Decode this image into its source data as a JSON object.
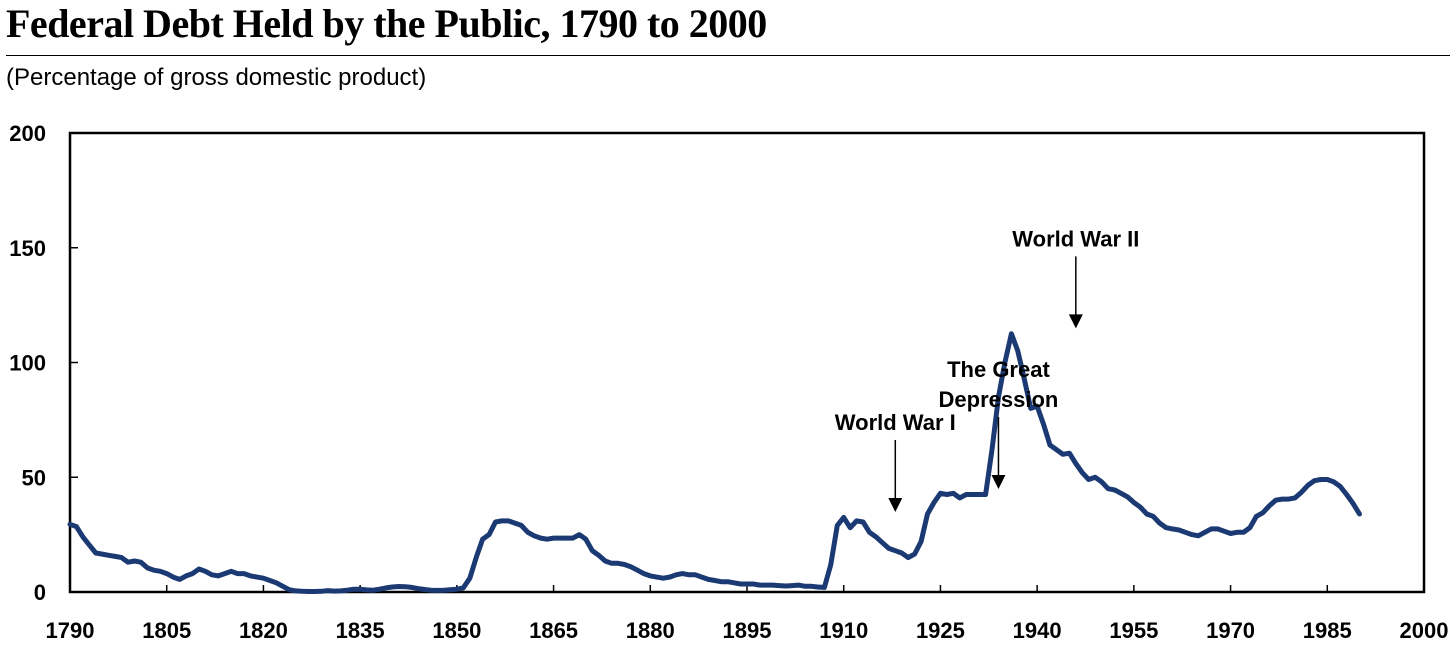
{
  "chart_data": {
    "type": "line",
    "title": "Federal Debt Held by the Public, 1790 to 2000",
    "subtitle": "(Percentage of gross domestic product)",
    "xlabel": "",
    "ylabel": "",
    "xlim": [
      1790,
      2000
    ],
    "ylim": [
      0,
      200
    ],
    "x_ticks": [
      1790,
      1805,
      1820,
      1835,
      1850,
      1865,
      1880,
      1895,
      1910,
      1925,
      1940,
      1955,
      1970,
      1985,
      2000
    ],
    "y_ticks": [
      0,
      50,
      100,
      150,
      200
    ],
    "grid": false,
    "legend": "none",
    "line_color": "#1b3a73",
    "series": [
      {
        "name": "",
        "points": [
          [
            1790,
            29.5
          ],
          [
            1791,
            28.5
          ],
          [
            1792,
            24
          ],
          [
            1793,
            20.5
          ],
          [
            1794,
            17
          ],
          [
            1795,
            16.5
          ],
          [
            1796,
            16
          ],
          [
            1797,
            15.5
          ],
          [
            1798,
            15
          ],
          [
            1799,
            13
          ],
          [
            1800,
            13.5
          ],
          [
            1801,
            13
          ],
          [
            1802,
            10.5
          ],
          [
            1803,
            9.5
          ],
          [
            1804,
            9
          ],
          [
            1805,
            8
          ],
          [
            1806,
            6.5
          ],
          [
            1807,
            5.5
          ],
          [
            1808,
            7
          ],
          [
            1809,
            8
          ],
          [
            1810,
            10
          ],
          [
            1811,
            9
          ],
          [
            1812,
            7.5
          ],
          [
            1813,
            7
          ],
          [
            1814,
            8
          ],
          [
            1815,
            9
          ],
          [
            1816,
            8
          ],
          [
            1817,
            8
          ],
          [
            1818,
            7
          ],
          [
            1819,
            6.5
          ],
          [
            1820,
            6
          ],
          [
            1821,
            5
          ],
          [
            1822,
            4
          ],
          [
            1823,
            2.5
          ],
          [
            1824,
            1
          ],
          [
            1825,
            0.5
          ],
          [
            1826,
            0.3
          ],
          [
            1827,
            0.2
          ],
          [
            1828,
            0.2
          ],
          [
            1829,
            0.3
          ],
          [
            1830,
            0.6
          ],
          [
            1831,
            0.4
          ],
          [
            1832,
            0.5
          ],
          [
            1833,
            0.8
          ],
          [
            1834,
            1.2
          ],
          [
            1835,
            1.2
          ],
          [
            1836,
            0.9
          ],
          [
            1837,
            0.8
          ],
          [
            1838,
            1.2
          ],
          [
            1839,
            1.8
          ],
          [
            1840,
            2.2
          ],
          [
            1841,
            2.4
          ],
          [
            1842,
            2.3
          ],
          [
            1843,
            2
          ],
          [
            1844,
            1.5
          ],
          [
            1845,
            1.1
          ],
          [
            1846,
            0.8
          ],
          [
            1847,
            0.7
          ],
          [
            1848,
            0.8
          ],
          [
            1849,
            1
          ],
          [
            1850,
            1.2
          ],
          [
            1851,
            1.8
          ],
          [
            1852,
            6
          ],
          [
            1853,
            15
          ],
          [
            1854,
            23
          ],
          [
            1855,
            25
          ],
          [
            1856,
            30.5
          ],
          [
            1857,
            31
          ],
          [
            1858,
            31
          ],
          [
            1859,
            30
          ],
          [
            1860,
            29
          ],
          [
            1861,
            26
          ],
          [
            1862,
            24.5
          ],
          [
            1863,
            23.5
          ],
          [
            1864,
            23
          ],
          [
            1865,
            23.5
          ],
          [
            1866,
            23.5
          ],
          [
            1867,
            23.5
          ],
          [
            1868,
            23.5
          ],
          [
            1869,
            25
          ],
          [
            1870,
            23
          ],
          [
            1871,
            18
          ],
          [
            1872,
            16
          ],
          [
            1873,
            13.5
          ],
          [
            1874,
            12.5
          ],
          [
            1875,
            12.5
          ],
          [
            1876,
            12
          ],
          [
            1877,
            11
          ],
          [
            1878,
            9.5
          ],
          [
            1879,
            8
          ],
          [
            1880,
            7
          ],
          [
            1881,
            6.5
          ],
          [
            1882,
            6
          ],
          [
            1883,
            6.5
          ],
          [
            1884,
            7.5
          ],
          [
            1885,
            8
          ],
          [
            1886,
            7.5
          ],
          [
            1887,
            7.5
          ],
          [
            1888,
            6.5
          ],
          [
            1889,
            5.5
          ],
          [
            1890,
            5
          ],
          [
            1891,
            4.5
          ],
          [
            1892,
            4.5
          ],
          [
            1893,
            4
          ],
          [
            1894,
            3.5
          ],
          [
            1895,
            3.5
          ],
          [
            1896,
            3.5
          ],
          [
            1897,
            3
          ],
          [
            1898,
            3
          ],
          [
            1899,
            3
          ],
          [
            1900,
            2.8
          ],
          [
            1901,
            2.6
          ],
          [
            1902,
            2.8
          ],
          [
            1903,
            3
          ],
          [
            1904,
            2.5
          ],
          [
            1905,
            2.5
          ],
          [
            1906,
            2.2
          ],
          [
            1907,
            2
          ],
          [
            1908,
            12
          ],
          [
            1909,
            29
          ],
          [
            1910,
            32.5
          ],
          [
            1911,
            28
          ],
          [
            1912,
            31
          ],
          [
            1913,
            30.5
          ],
          [
            1914,
            26
          ],
          [
            1915,
            24
          ],
          [
            1916,
            21.5
          ],
          [
            1917,
            19
          ],
          [
            1918,
            18
          ],
          [
            1919,
            17
          ],
          [
            1920,
            15
          ],
          [
            1921,
            16.5
          ],
          [
            1922,
            22
          ],
          [
            1923,
            34
          ],
          [
            1924,
            39
          ],
          [
            1925,
            43
          ],
          [
            1926,
            42.5
          ],
          [
            1927,
            43
          ],
          [
            1928,
            41
          ],
          [
            1929,
            42.5
          ],
          [
            1930,
            42.5
          ],
          [
            1931,
            42.5
          ],
          [
            1932,
            42.5
          ],
          [
            1933,
            62
          ],
          [
            1934,
            85
          ],
          [
            1935,
            100
          ],
          [
            1936,
            112.5
          ],
          [
            1937,
            105
          ],
          [
            1938,
            93
          ],
          [
            1939,
            80
          ],
          [
            1940,
            81
          ],
          [
            1941,
            73
          ],
          [
            1942,
            64
          ],
          [
            1943,
            62
          ],
          [
            1944,
            60
          ],
          [
            1945,
            60.5
          ],
          [
            1946,
            56
          ],
          [
            1947,
            52
          ],
          [
            1948,
            49
          ],
          [
            1949,
            50
          ],
          [
            1950,
            48
          ],
          [
            1951,
            45
          ],
          [
            1952,
            44.5
          ],
          [
            1953,
            43
          ],
          [
            1954,
            41.5
          ],
          [
            1955,
            39
          ],
          [
            1956,
            37
          ],
          [
            1957,
            34
          ],
          [
            1958,
            33
          ],
          [
            1959,
            30
          ],
          [
            1960,
            28
          ],
          [
            1961,
            27.5
          ],
          [
            1962,
            27
          ],
          [
            1963,
            26
          ],
          [
            1964,
            25
          ],
          [
            1965,
            24.5
          ],
          [
            1966,
            26
          ],
          [
            1967,
            27.5
          ],
          [
            1968,
            27.5
          ],
          [
            1969,
            26.5
          ],
          [
            1970,
            25.5
          ],
          [
            1971,
            26
          ],
          [
            1972,
            26
          ],
          [
            1973,
            28
          ],
          [
            1974,
            33
          ],
          [
            1975,
            34.5
          ],
          [
            1976,
            37.5
          ],
          [
            1977,
            40
          ],
          [
            1978,
            40.5
          ],
          [
            1979,
            40.5
          ],
          [
            1980,
            41
          ],
          [
            1981,
            43.5
          ],
          [
            1982,
            46.5
          ],
          [
            1983,
            48.5
          ],
          [
            1984,
            49
          ],
          [
            1985,
            49
          ],
          [
            1986,
            48
          ],
          [
            1987,
            46
          ],
          [
            1988,
            42.5
          ],
          [
            1989,
            38.5
          ],
          [
            1990,
            34
          ]
        ]
      }
    ],
    "annotations": [
      {
        "lines": [
          "World War I"
        ],
        "x": 1918,
        "y": 34
      },
      {
        "lines": [
          "The Great",
          "Depression"
        ],
        "x": 1934,
        "y": 44
      },
      {
        "lines": [
          "World War II"
        ],
        "x": 1946,
        "y": 114
      }
    ]
  }
}
